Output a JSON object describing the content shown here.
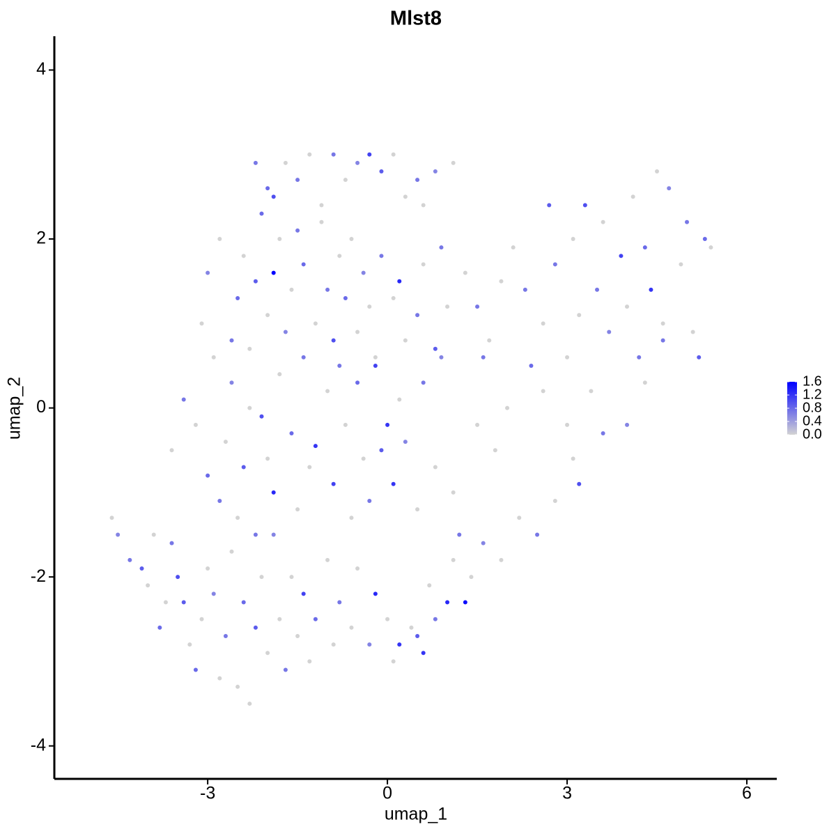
{
  "chart_data": {
    "type": "scatter",
    "title": "Mlst8",
    "x_label": "umap_1",
    "y_label": "umap_2",
    "x": [
      -4.6,
      -4.5,
      -4.3,
      -4.1,
      -4.0,
      -3.9,
      -3.8,
      -3.7,
      -3.6,
      -3.5,
      -3.4,
      -3.3,
      -3.2,
      -3.1,
      -3.0,
      -2.9,
      -2.8,
      -2.7,
      -2.6,
      -2.5,
      -2.4,
      -2.3,
      -2.2,
      -2.1,
      -2.0,
      -1.9,
      -1.8,
      -1.7,
      -1.6,
      -1.5,
      -1.4,
      -1.3,
      -1.2,
      -1.0,
      -0.9,
      -0.8,
      -0.6,
      -0.5,
      -0.3,
      -0.2,
      0.0,
      0.1,
      0.2,
      0.4,
      0.5,
      0.6,
      0.7,
      0.8,
      1.0,
      1.3,
      1.1,
      -3.6,
      -3.4,
      -3.2,
      -3.0,
      -2.9,
      -2.8,
      -2.7,
      -2.6,
      -2.5,
      -2.4,
      -2.3,
      -2.2,
      -2.1,
      -2.0,
      -1.9,
      -1.8,
      -1.6,
      -1.5,
      -1.4,
      -1.3,
      -1.2,
      -1.0,
      -0.9,
      -0.8,
      -0.7,
      -0.6,
      -0.5,
      -0.4,
      -0.3,
      -0.2,
      -0.1,
      0.0,
      0.1,
      0.2,
      0.3,
      0.5,
      0.6,
      0.8,
      0.9,
      1.1,
      1.2,
      -3.1,
      -3.0,
      -2.8,
      -2.6,
      -2.5,
      -2.4,
      -2.3,
      -2.2,
      -2.1,
      -2.0,
      -1.9,
      -1.8,
      -1.7,
      -1.6,
      -1.5,
      -1.4,
      -1.2,
      -1.1,
      -1.0,
      -0.9,
      -0.8,
      -0.7,
      -0.6,
      -0.5,
      -0.4,
      -0.3,
      -0.2,
      -0.1,
      0.1,
      0.2,
      0.3,
      0.5,
      0.6,
      0.8,
      0.9,
      1.0,
      -2.2,
      -2.0,
      -1.9,
      -1.7,
      -1.5,
      -1.3,
      -1.1,
      -0.9,
      -0.7,
      -0.5,
      -0.3,
      -0.1,
      0.1,
      0.3,
      0.5,
      0.6,
      0.8,
      1.1,
      1.3,
      1.5,
      1.7,
      1.9,
      2.1,
      2.3,
      2.4,
      2.6,
      2.7,
      2.8,
      3.0,
      3.1,
      3.2,
      3.3,
      3.5,
      3.6,
      3.7,
      3.9,
      4.0,
      4.1,
      4.2,
      4.3,
      4.4,
      4.5,
      4.6,
      4.7,
      4.9,
      5.0,
      5.1,
      5.2,
      5.3,
      5.4,
      3.4,
      3.6,
      3.1,
      3.2,
      2.8,
      2.5,
      2.2,
      1.9,
      1.6,
      1.4,
      4.0,
      4.3,
      4.6,
      3.0,
      2.6,
      2.0,
      1.8,
      1.5,
      1.6
    ],
    "y": [
      -1.3,
      -1.5,
      -1.8,
      -1.9,
      -2.1,
      -1.5,
      -2.6,
      -2.3,
      -1.6,
      -2.0,
      -2.3,
      -2.8,
      -3.1,
      -2.5,
      -1.9,
      -2.2,
      -3.2,
      -2.7,
      -1.7,
      -3.3,
      -2.3,
      -3.5,
      -2.6,
      -2.0,
      -2.9,
      -1.5,
      -2.5,
      -3.1,
      -2.0,
      -2.7,
      -2.2,
      -3.0,
      -2.5,
      -1.8,
      -2.8,
      -2.3,
      -2.6,
      -1.9,
      -2.8,
      -2.2,
      -2.5,
      -3.0,
      -2.8,
      -2.6,
      -2.7,
      -2.9,
      -2.1,
      -2.5,
      -2.3,
      -2.3,
      -1.8,
      -0.5,
      0.1,
      -0.2,
      -0.8,
      0.6,
      -1.1,
      -0.4,
      0.3,
      -1.3,
      -0.7,
      0.0,
      -1.5,
      -0.1,
      -0.6,
      -1.0,
      0.4,
      -0.3,
      -1.2,
      0.6,
      -0.7,
      -0.45,
      0.2,
      -0.9,
      0.5,
      -0.2,
      -1.3,
      0.3,
      -0.6,
      -1.1,
      0.6,
      -0.5,
      -0.2,
      -0.9,
      0.1,
      -0.4,
      -1.2,
      0.3,
      -0.7,
      0.6,
      -1.0,
      -1.5,
      1.0,
      1.6,
      2.0,
      0.8,
      1.3,
      1.8,
      0.7,
      1.5,
      2.3,
      1.1,
      1.6,
      2.0,
      0.9,
      1.4,
      2.1,
      1.7,
      1.0,
      2.2,
      1.4,
      0.8,
      1.8,
      1.3,
      2.0,
      0.9,
      1.6,
      1.2,
      0.5,
      1.8,
      1.3,
      1.5,
      0.8,
      1.1,
      1.7,
      0.7,
      1.9,
      1.2,
      2.9,
      2.6,
      2.5,
      2.9,
      2.7,
      3.0,
      2.4,
      3.0,
      2.7,
      2.9,
      3.0,
      2.8,
      3.0,
      2.5,
      2.7,
      2.4,
      2.8,
      2.9,
      1.6,
      1.2,
      0.8,
      1.5,
      1.9,
      1.4,
      0.5,
      1.0,
      2.4,
      1.7,
      0.6,
      2.0,
      1.1,
      2.4,
      1.4,
      2.2,
      0.9,
      1.8,
      1.2,
      2.5,
      0.6,
      1.9,
      1.4,
      2.8,
      1.0,
      2.6,
      1.7,
      2.2,
      0.9,
      0.6,
      2.0,
      1.9,
      0.2,
      -0.3,
      -0.6,
      -0.9,
      -1.1,
      -1.5,
      -1.3,
      -1.8,
      -1.6,
      -2.0,
      -0.2,
      0.3,
      0.8,
      -0.2,
      0.2,
      0.0,
      -0.5,
      -0.2,
      0.6
    ],
    "values": [
      0,
      0.6,
      0.7,
      0.9,
      0,
      0,
      0.8,
      0,
      0.7,
      1.0,
      0.9,
      0,
      0.8,
      0,
      0,
      0.6,
      0,
      0.7,
      0,
      0,
      0.8,
      0,
      0.9,
      0,
      0,
      0.6,
      0,
      0.7,
      0,
      0,
      1.1,
      0,
      0.8,
      0,
      0,
      0.7,
      0,
      0,
      0.6,
      1.3,
      0,
      0,
      1.2,
      0,
      0.9,
      1.2,
      0,
      0.7,
      1.3,
      1.5,
      0,
      0,
      0.7,
      0,
      0.8,
      0,
      0.7,
      0,
      0.6,
      0,
      0.9,
      0,
      0.7,
      1.0,
      0,
      1.3,
      0,
      0.8,
      0,
      0.7,
      0,
      1.2,
      0,
      1.1,
      0.7,
      0,
      0,
      0.8,
      0,
      0.7,
      0,
      0.9,
      1.2,
      1.2,
      0,
      0.6,
      0,
      0.7,
      0,
      0.6,
      0,
      0.7,
      0,
      0.6,
      0,
      0.7,
      0.8,
      0,
      0,
      0.9,
      0.8,
      0,
      1.6,
      0,
      0.6,
      0,
      0.7,
      0.8,
      0,
      0,
      0.7,
      1.0,
      0,
      0.8,
      0,
      0,
      0.6,
      0,
      1.1,
      0.7,
      0,
      1.3,
      0,
      0.7,
      0,
      0.9,
      0.7,
      0,
      0.7,
      0.8,
      1.0,
      0,
      0.7,
      0,
      0,
      0.7,
      0,
      0.6,
      1.1,
      0.9,
      0,
      0,
      0.7,
      0,
      0.6,
      0,
      0,
      0.7,
      0,
      0,
      0,
      0.7,
      0.8,
      0,
      0.9,
      0.7,
      0,
      0,
      0,
      1.0,
      0.7,
      0,
      0.6,
      1.1,
      0,
      0,
      0.7,
      0.8,
      1.2,
      0,
      0,
      0.6,
      0,
      0.7,
      0,
      0.9,
      0.8,
      0,
      0,
      0.7,
      0,
      1.0,
      0,
      0.7,
      0,
      0,
      0.6,
      0,
      0.6,
      0,
      0.7,
      0,
      0,
      0,
      0,
      0,
      0.7
    ],
    "xlim": [
      -5.56,
      6.5
    ],
    "ylim": [
      -4.39,
      4.4
    ],
    "xticks": [
      -3,
      0,
      3,
      6
    ],
    "yticks": [
      -4,
      -2,
      0,
      2,
      4
    ],
    "color_low": "#d3d3d3",
    "color_high": "#0000ff",
    "colorbar": {
      "lim": [
        0,
        1.6
      ],
      "ticks": [
        {
          "value": 0,
          "label": "0.0"
        },
        {
          "value": 0.4,
          "label": "0.4"
        },
        {
          "value": 0.8,
          "label": "0.8"
        },
        {
          "value": 1.2,
          "label": "1.2"
        },
        {
          "value": 1.6,
          "label": "1.6"
        }
      ]
    }
  }
}
